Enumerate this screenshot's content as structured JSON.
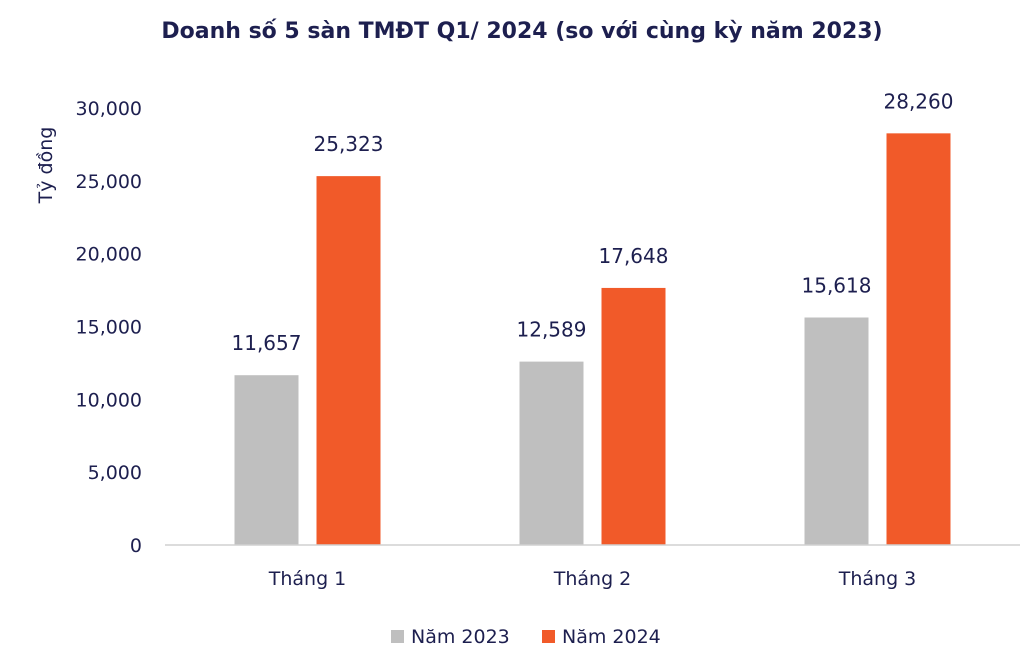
{
  "chart_data": {
    "type": "bar",
    "title": "Doanh số 5 sàn TMĐT Q1/ 2024 (so với cùng kỳ năm 2023)",
    "ylabel": "Tỷ đồng",
    "xlabel": "",
    "categories": [
      "Tháng 1",
      "Tháng 2",
      "Tháng 3"
    ],
    "series": [
      {
        "name": "Năm 2023",
        "color": "#bfbfbf",
        "values": [
          11657,
          12589,
          15618
        ],
        "labels": [
          "11,657",
          "12,589",
          "15,618"
        ]
      },
      {
        "name": "Năm 2024",
        "color": "#f15a29",
        "values": [
          25323,
          17648,
          28260
        ],
        "labels": [
          "25,323",
          "17,648",
          "28,260"
        ]
      }
    ],
    "ylim": [
      0,
      30000
    ],
    "yticks": [
      0,
      5000,
      10000,
      15000,
      20000,
      25000,
      30000
    ],
    "ytick_labels": [
      "0",
      "5,000",
      "10,000",
      "15,000",
      "20,000",
      "25,000",
      "30,000"
    ],
    "grid": false,
    "legend": "bottom"
  }
}
